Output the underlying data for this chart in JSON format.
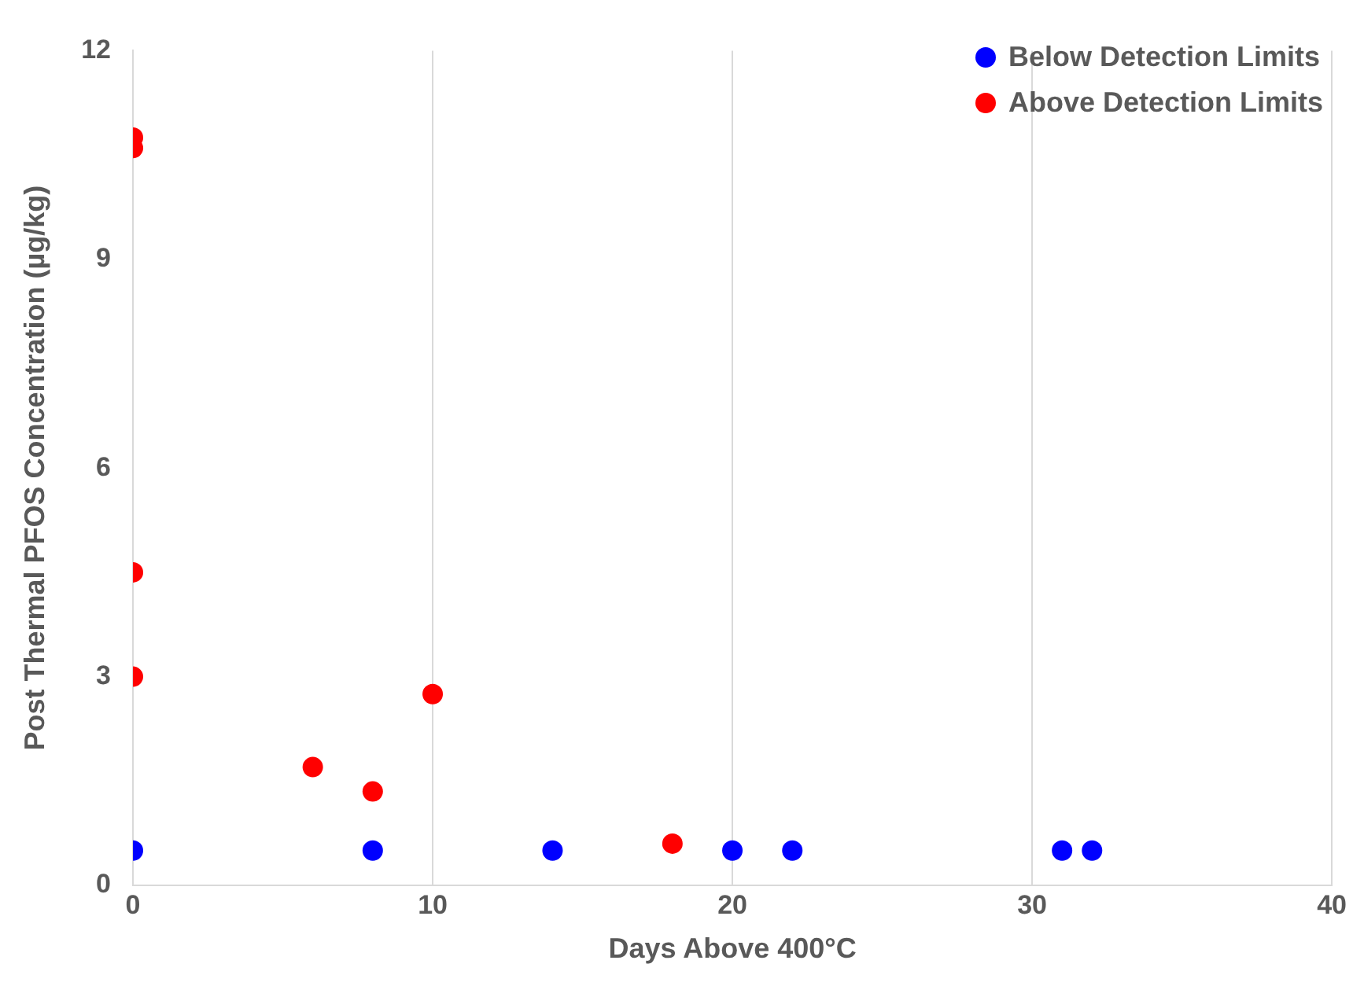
{
  "chart_data": {
    "type": "scatter",
    "xlabel": "Days Above 400°C",
    "ylabel": "Post Thermal PFOS Concentration (µg/kg)",
    "series": [
      {
        "name": "Below Detection Limits",
        "color": "#0000ff",
        "x": [
          0,
          8,
          14,
          20,
          22,
          31,
          32
        ],
        "values": [
          0.5,
          0.5,
          0.5,
          0.5,
          0.5,
          0.5,
          0.5
        ]
      },
      {
        "name": "Above Detection Limits",
        "color": "#ff0000",
        "x": [
          0,
          0,
          0,
          0,
          6,
          8,
          10,
          18
        ],
        "values": [
          10.75,
          10.6,
          4.5,
          3,
          1.7,
          1.35,
          2.75,
          0.6
        ]
      }
    ],
    "xlim": [
      0,
      40
    ],
    "xticks": [
      0,
      10,
      20,
      30,
      40
    ],
    "ylim": [
      0,
      12
    ],
    "yticks": [
      0,
      3,
      6,
      9,
      12
    ],
    "grid": "x",
    "legend": "top right",
    "marker": "circle"
  }
}
